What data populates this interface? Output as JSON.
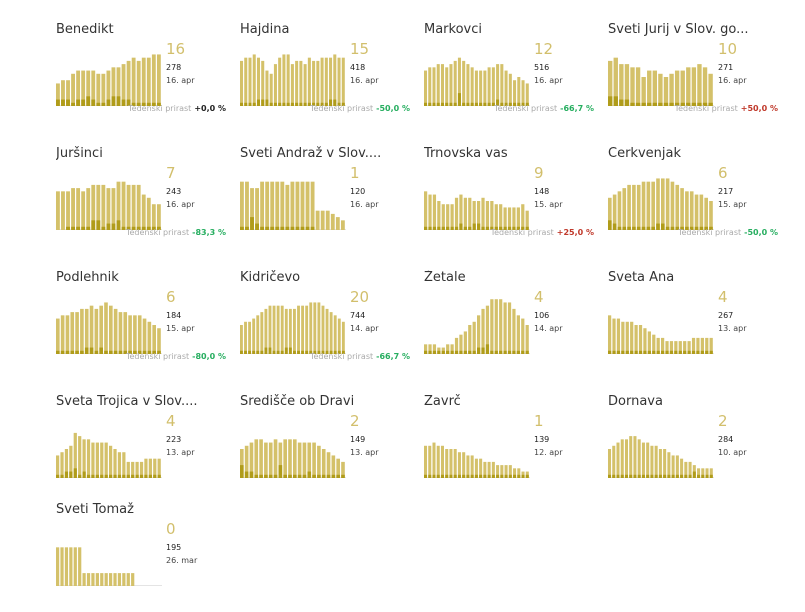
{
  "growth_label": "Tedenski prirast",
  "colors": {
    "bar": "#d4c16a",
    "bar_dark": "#b09c1a",
    "number": "#d2bf6c",
    "pos": "#c0392b",
    "neg": "#27ae60",
    "zero": "#222222"
  },
  "chart_data": {
    "type": "bar",
    "panels": [
      {
        "name": "Benedikt",
        "active": "16",
        "total": "278",
        "date": "16. apr",
        "growth": "+0,0 %",
        "gclass": "zero",
        "values": [
          7,
          8,
          8,
          10,
          11,
          11,
          11,
          11,
          10,
          10,
          11,
          12,
          12,
          13,
          14,
          15,
          14,
          15,
          15,
          16,
          16
        ],
        "dark": [
          2,
          2,
          2,
          1,
          2,
          2,
          3,
          2,
          1,
          1,
          2,
          3,
          3,
          2,
          2,
          1,
          1,
          1,
          1,
          1,
          1
        ]
      },
      {
        "name": "Hajdina",
        "active": "15",
        "total": "418",
        "date": "16. apr",
        "growth": "-50,0 %",
        "gclass": "neg",
        "values": [
          14,
          15,
          15,
          16,
          15,
          14,
          11,
          10,
          13,
          15,
          16,
          16,
          13,
          14,
          14,
          13,
          15,
          14,
          14,
          15,
          15,
          15,
          16,
          15,
          15
        ],
        "dark": [
          1,
          1,
          1,
          1,
          2,
          2,
          2,
          1,
          1,
          1,
          1,
          1,
          1,
          1,
          1,
          1,
          1,
          1,
          1,
          1,
          1,
          2,
          2,
          1,
          1
        ]
      },
      {
        "name": "Markovci",
        "active": "12",
        "total": "516",
        "date": "16. apr",
        "growth": "-66,7 %",
        "gclass": "neg",
        "values": [
          11,
          12,
          12,
          13,
          13,
          12,
          13,
          14,
          15,
          14,
          13,
          12,
          11,
          11,
          11,
          12,
          12,
          13,
          13,
          11,
          10,
          8,
          9,
          8,
          7
        ],
        "dark": [
          1,
          1,
          1,
          1,
          1,
          1,
          1,
          1,
          4,
          1,
          1,
          1,
          1,
          1,
          1,
          1,
          1,
          2,
          1,
          1,
          1,
          1,
          1,
          1,
          1
        ]
      },
      {
        "name": "Sveti Jurij v Slov. go...",
        "active": "10",
        "total": "271",
        "date": "16. apr",
        "growth": "+50,0 %",
        "gclass": "pos",
        "values": [
          14,
          15,
          13,
          13,
          12,
          12,
          9,
          11,
          11,
          10,
          9,
          10,
          11,
          11,
          12,
          12,
          13,
          12,
          10
        ],
        "dark": [
          3,
          3,
          2,
          2,
          1,
          1,
          1,
          1,
          1,
          1,
          1,
          1,
          1,
          1,
          1,
          1,
          1,
          1,
          1
        ]
      },
      {
        "name": "Juršinci",
        "active": "7",
        "total": "243",
        "date": "16. apr",
        "growth": "-83,3 %",
        "gclass": "neg",
        "values": [
          12,
          12,
          12,
          13,
          13,
          12,
          13,
          14,
          14,
          14,
          13,
          13,
          15,
          15,
          14,
          14,
          14,
          11,
          10,
          8,
          8
        ],
        "dark": [
          0,
          0,
          1,
          1,
          1,
          1,
          1,
          3,
          3,
          1,
          2,
          2,
          3,
          1,
          1,
          1,
          1,
          1,
          1,
          1,
          1
        ]
      },
      {
        "name": "Sveti Andraž v Slov....",
        "active": "1",
        "total": "120",
        "date": "16. apr",
        "growth": "",
        "gclass": "zero",
        "values": [
          15,
          15,
          13,
          13,
          15,
          15,
          15,
          15,
          15,
          14,
          15,
          15,
          15,
          15,
          15,
          6,
          6,
          6,
          5,
          4,
          3
        ],
        "dark": [
          1,
          1,
          4,
          2,
          1,
          1,
          1,
          1,
          1,
          1,
          1,
          1,
          1,
          1,
          1,
          0,
          0,
          0,
          0,
          0,
          0
        ]
      },
      {
        "name": "Trnovska vas",
        "active": "9",
        "total": "148",
        "date": "15. apr",
        "growth": "+25,0 %",
        "gclass": "pos",
        "values": [
          12,
          11,
          11,
          9,
          8,
          8,
          8,
          10,
          11,
          10,
          10,
          9,
          9,
          10,
          9,
          9,
          8,
          8,
          7,
          7,
          7,
          7,
          8,
          6
        ],
        "dark": [
          1,
          1,
          1,
          1,
          1,
          1,
          1,
          1,
          2,
          1,
          1,
          2,
          2,
          1,
          1,
          1,
          1,
          1,
          1,
          1,
          1,
          1,
          1,
          1
        ]
      },
      {
        "name": "Cerkvenjak",
        "active": "6",
        "total": "217",
        "date": "15. apr",
        "growth": "-50,0 %",
        "gclass": "neg",
        "values": [
          10,
          11,
          12,
          13,
          14,
          14,
          14,
          15,
          15,
          15,
          16,
          16,
          16,
          15,
          14,
          13,
          12,
          12,
          11,
          11,
          10,
          9
        ],
        "dark": [
          3,
          2,
          1,
          1,
          1,
          1,
          1,
          1,
          1,
          1,
          2,
          2,
          1,
          1,
          1,
          1,
          1,
          1,
          1,
          1,
          1,
          1
        ]
      },
      {
        "name": "Podlehnik",
        "active": "6",
        "total": "184",
        "date": "15. apr",
        "growth": "-80,0 %",
        "gclass": "neg",
        "values": [
          11,
          12,
          12,
          13,
          13,
          14,
          14,
          15,
          14,
          15,
          16,
          15,
          14,
          13,
          13,
          12,
          12,
          12,
          11,
          10,
          9,
          8
        ],
        "dark": [
          1,
          1,
          1,
          1,
          1,
          1,
          2,
          2,
          1,
          2,
          1,
          1,
          1,
          1,
          1,
          1,
          1,
          1,
          1,
          1,
          1,
          1
        ]
      },
      {
        "name": "Kidričevo",
        "active": "20",
        "total": "744",
        "date": "14. apr",
        "growth": "-66,7 %",
        "gclass": "neg",
        "values": [
          9,
          10,
          10,
          11,
          12,
          13,
          14,
          15,
          15,
          15,
          15,
          14,
          14,
          14,
          15,
          15,
          15,
          16,
          16,
          16,
          15,
          14,
          13,
          12,
          11,
          10
        ],
        "dark": [
          1,
          1,
          1,
          1,
          1,
          1,
          2,
          2,
          1,
          1,
          1,
          2,
          2,
          1,
          1,
          1,
          1,
          1,
          1,
          1,
          1,
          1,
          1,
          1,
          1,
          1
        ]
      },
      {
        "name": "Žetale",
        "active": "4",
        "total": "106",
        "date": "14. apr",
        "growth": "",
        "gclass": "zero",
        "values": [
          3,
          3,
          3,
          2,
          2,
          3,
          3,
          5,
          6,
          7,
          9,
          10,
          12,
          14,
          15,
          17,
          17,
          17,
          16,
          16,
          14,
          12,
          11,
          9
        ],
        "dark": [
          1,
          1,
          1,
          1,
          1,
          1,
          1,
          1,
          1,
          1,
          1,
          1,
          2,
          2,
          3,
          1,
          1,
          1,
          1,
          1,
          1,
          1,
          1,
          1
        ]
      },
      {
        "name": "Sveta Ana",
        "active": "4",
        "total": "267",
        "date": "13. apr",
        "growth": "",
        "gclass": "zero",
        "values": [
          12,
          11,
          11,
          10,
          10,
          10,
          9,
          9,
          8,
          7,
          6,
          5,
          5,
          4,
          4,
          4,
          4,
          4,
          4,
          5,
          5,
          5,
          5,
          5
        ],
        "dark": [
          1,
          1,
          1,
          1,
          1,
          1,
          1,
          1,
          1,
          1,
          1,
          1,
          1,
          1,
          1,
          1,
          1,
          1,
          1,
          1,
          1,
          1,
          1,
          1
        ]
      },
      {
        "name": "Sveta Trojica v Slov....",
        "active": "4",
        "total": "223",
        "date": "13. apr",
        "growth": "",
        "gclass": "zero",
        "values": [
          7,
          8,
          9,
          10,
          14,
          13,
          12,
          12,
          11,
          11,
          11,
          11,
          10,
          9,
          8,
          8,
          5,
          5,
          5,
          5,
          6,
          6,
          6,
          6
        ],
        "dark": [
          1,
          1,
          2,
          2,
          3,
          1,
          2,
          1,
          1,
          1,
          1,
          1,
          1,
          1,
          1,
          1,
          1,
          1,
          1,
          1,
          1,
          1,
          1,
          1
        ]
      },
      {
        "name": "Središče ob Dravi",
        "active": "2",
        "total": "149",
        "date": "13. apr",
        "growth": "",
        "gclass": "zero",
        "values": [
          9,
          10,
          11,
          12,
          12,
          11,
          11,
          12,
          11,
          12,
          12,
          12,
          11,
          11,
          11,
          11,
          10,
          9,
          8,
          7,
          6,
          5
        ],
        "dark": [
          4,
          2,
          2,
          1,
          1,
          1,
          1,
          1,
          4,
          1,
          1,
          1,
          1,
          1,
          2,
          1,
          1,
          1,
          1,
          1,
          1,
          1
        ]
      },
      {
        "name": "Zavrč",
        "active": "1",
        "total": "139",
        "date": "12. apr",
        "growth": "",
        "gclass": "zero",
        "values": [
          10,
          10,
          11,
          10,
          10,
          9,
          9,
          9,
          8,
          8,
          7,
          7,
          6,
          6,
          5,
          5,
          5,
          4,
          4,
          4,
          4,
          3,
          3,
          2,
          2
        ],
        "dark": [
          1,
          1,
          1,
          1,
          1,
          1,
          1,
          1,
          1,
          1,
          1,
          1,
          1,
          1,
          1,
          1,
          1,
          1,
          1,
          1,
          1,
          1,
          1,
          1,
          1
        ]
      },
      {
        "name": "Dornava",
        "active": "2",
        "total": "284",
        "date": "10. apr",
        "growth": "",
        "gclass": "zero",
        "values": [
          9,
          10,
          11,
          12,
          12,
          13,
          13,
          12,
          11,
          11,
          10,
          10,
          9,
          9,
          8,
          7,
          7,
          6,
          5,
          5,
          4,
          3,
          3,
          3,
          3
        ],
        "dark": [
          1,
          1,
          1,
          1,
          1,
          1,
          1,
          1,
          1,
          1,
          1,
          1,
          1,
          1,
          1,
          1,
          1,
          1,
          1,
          1,
          2,
          1,
          1,
          1,
          1
        ]
      },
      {
        "name": "Sveti Tomaž",
        "active": "0",
        "total": "195",
        "date": "26. mar",
        "growth": "",
        "gclass": "zero",
        "values": [
          12,
          12,
          12,
          12,
          12,
          12,
          4,
          4,
          4,
          4,
          4,
          4,
          4,
          4,
          4,
          4,
          4,
          4,
          0,
          0,
          0,
          0,
          0,
          0
        ],
        "dark": [
          0,
          0,
          0,
          0,
          0,
          0,
          0,
          0,
          0,
          0,
          0,
          0,
          0,
          0,
          0,
          0,
          0,
          0,
          0,
          0,
          0,
          0,
          0,
          0
        ]
      }
    ]
  }
}
